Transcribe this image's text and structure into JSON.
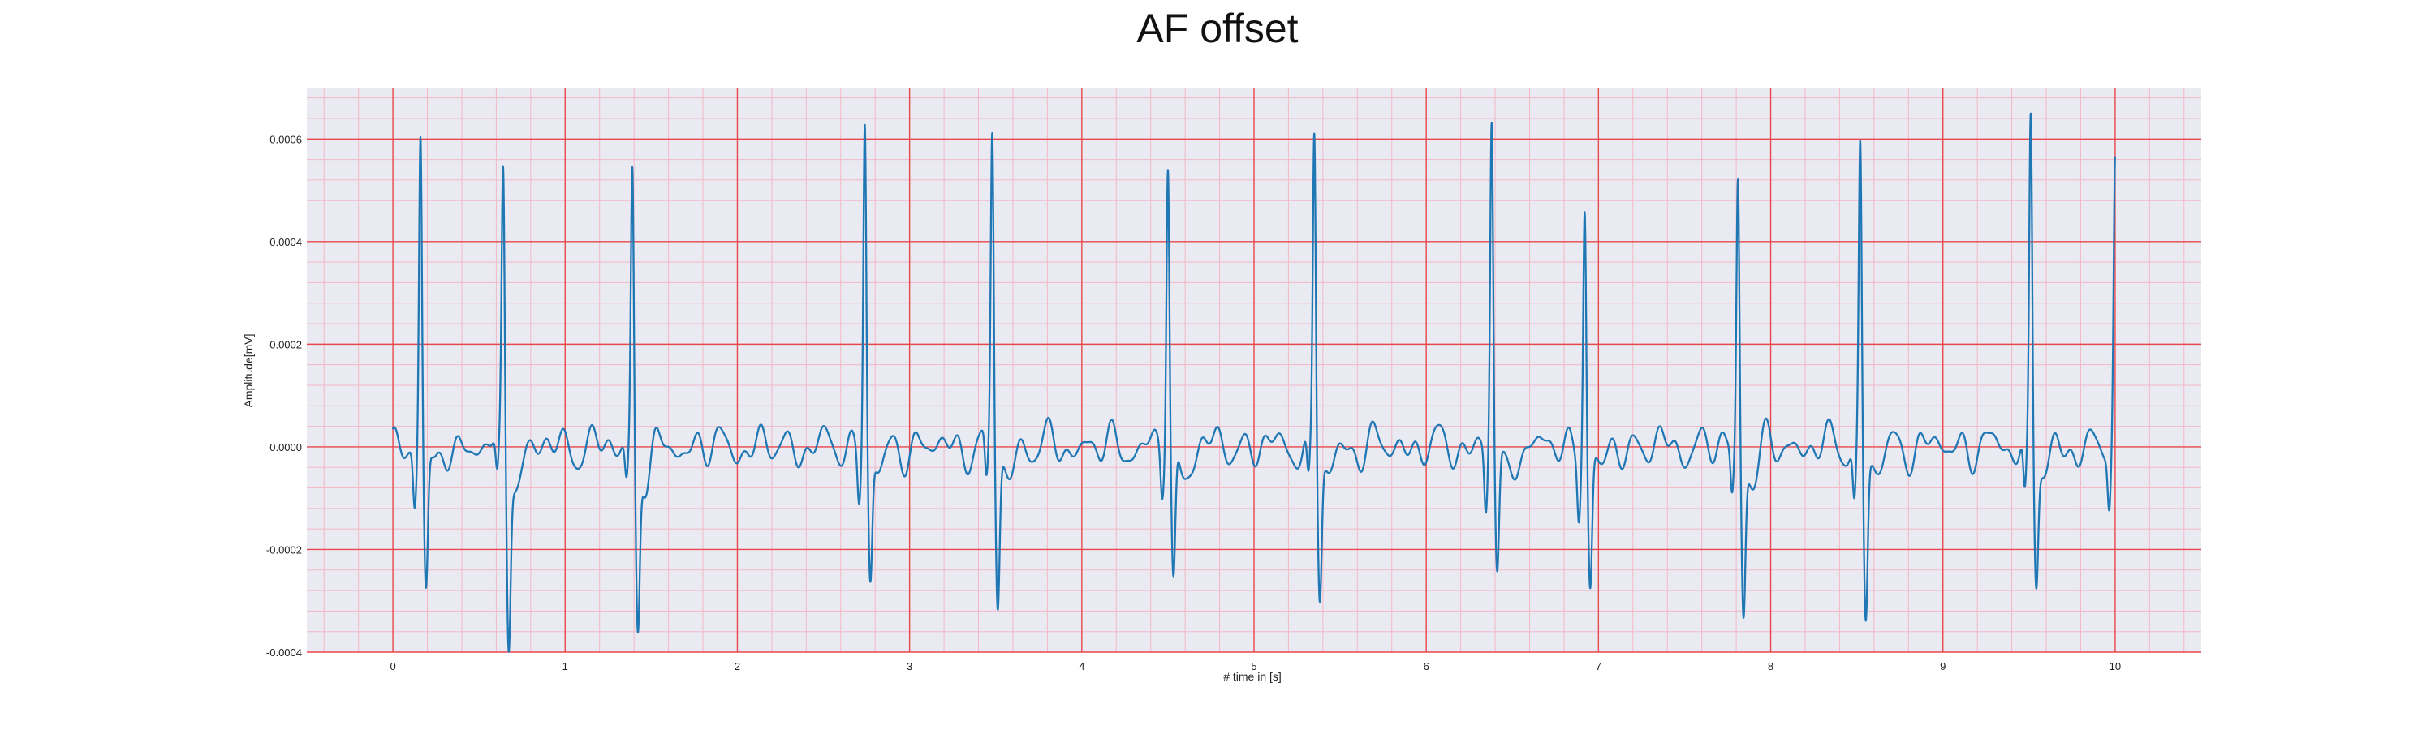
{
  "chart_data": {
    "type": "line",
    "title": "AF offset",
    "xlabel": "# time in [s]",
    "ylabel": "Amplitude[mV]",
    "xlim": [
      -0.5,
      10.5
    ],
    "ylim": [
      -0.0004,
      0.0007
    ],
    "x_ticks": [
      0,
      1,
      2,
      3,
      4,
      5,
      6,
      7,
      8,
      9,
      10
    ],
    "x_tick_labels": [
      "0",
      "1",
      "2",
      "3",
      "4",
      "5",
      "6",
      "7",
      "8",
      "9",
      "10"
    ],
    "y_ticks": [
      -0.0004,
      -0.0002,
      0.0,
      0.0002,
      0.0004,
      0.0006
    ],
    "y_tick_labels": [
      "-0.0004",
      "-0.0002",
      "0.0000",
      "0.0002",
      "0.0004",
      "0.0006"
    ],
    "grid": "on",
    "minor_grid": "on",
    "colors": {
      "line": "#1f77b4",
      "plot_background": "#eaeaf2",
      "major_grid": "#e8474a",
      "minor_grid": "#f2b8c6"
    },
    "series": [
      {
        "x_start": 0.0,
        "x_end": 10.0,
        "beats": [
          {
            "t": 0.16,
            "r": 0.00063,
            "q": -0.0001,
            "s": -0.00027
          },
          {
            "t": 0.64,
            "r": 0.00052,
            "q": -8e-05,
            "s": -0.00035
          },
          {
            "t": 1.39,
            "r": 0.000545,
            "q": -7e-05,
            "s": -0.000335
          },
          {
            "t": 2.74,
            "r": 0.00065,
            "q": -9e-05,
            "s": -0.00025
          },
          {
            "t": 3.48,
            "r": 0.00062,
            "q": -9e-05,
            "s": -0.00029
          },
          {
            "t": 4.5,
            "r": 0.000565,
            "q": -8e-05,
            "s": -0.000265
          },
          {
            "t": 5.35,
            "r": 0.00061,
            "q": -9e-05,
            "s": -0.00027
          },
          {
            "t": 6.38,
            "r": 0.000645,
            "q": -0.00012,
            "s": -0.000235
          },
          {
            "t": 6.92,
            "r": 0.00049,
            "q": -0.00011,
            "s": -0.00026
          },
          {
            "t": 7.81,
            "r": 0.00053,
            "q": -9e-05,
            "s": -0.0003
          },
          {
            "t": 8.52,
            "r": 0.000595,
            "q": -0.00011,
            "s": -0.000315
          },
          {
            "t": 9.51,
            "r": 0.00065,
            "q": -0.00011,
            "s": -0.000235
          },
          {
            "t": 10.0,
            "r": 0.00053,
            "q": -0.00011,
            "s": 0.0
          }
        ]
      }
    ]
  }
}
